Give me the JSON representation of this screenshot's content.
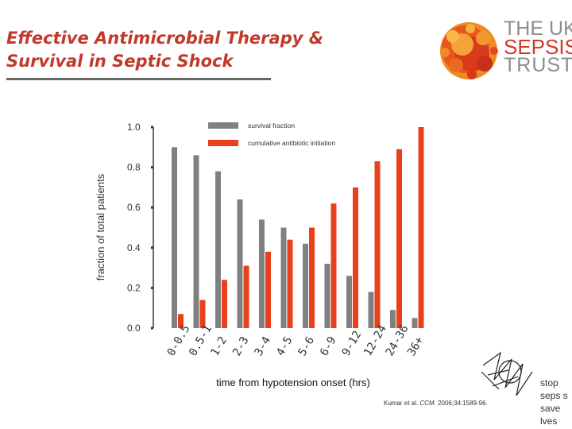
{
  "title": {
    "line1": "Effective Antimicrobial Therapy &",
    "line2": "Survival in Septic Shock"
  },
  "logo": {
    "line1": "THE UK",
    "line2": "SEPSIS",
    "line3": "TRUST"
  },
  "citation": {
    "authors": "Kumar et al.",
    "journal": "CCM",
    "rest": ". 2006;34:1589-96."
  },
  "stamp": {
    "text": [
      "stop",
      "seps s",
      "save",
      "lves"
    ]
  },
  "colors": {
    "accent": "#d03a26",
    "survival": "#808080",
    "cumulative": "#e8401c",
    "axis": "#333333"
  },
  "chart_data": {
    "type": "bar",
    "xlabel": "time from hypotension onset (hrs)",
    "ylabel": "fraction of total patients",
    "ylim": [
      0,
      1.0
    ],
    "yticks": [
      "1.0",
      "0.8",
      "0.6",
      "0.4",
      "0.2",
      "0.0"
    ],
    "legend_position": "top",
    "categories": [
      "0-0.5",
      "0.5-1",
      "1-2",
      "2-3",
      "3-4",
      "4-5",
      "5-6",
      "6-9",
      "9-12",
      "12-24",
      "24-36",
      "36+"
    ],
    "series": [
      {
        "name": "survival fraction",
        "values": [
          0.9,
          0.86,
          0.78,
          0.64,
          0.54,
          0.5,
          0.42,
          0.32,
          0.26,
          0.18,
          0.09,
          0.05
        ]
      },
      {
        "name": "cumulative antibiotic initiation",
        "values": [
          0.07,
          0.14,
          0.24,
          0.31,
          0.38,
          0.44,
          0.5,
          0.62,
          0.7,
          0.83,
          0.89,
          1.0
        ]
      }
    ]
  }
}
